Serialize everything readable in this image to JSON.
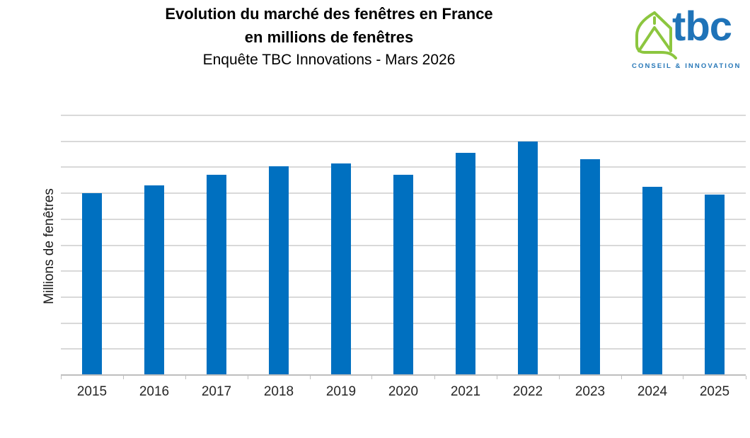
{
  "title": {
    "line1": "Evolution du marché des fenêtres en France",
    "line2": "en millions de fenêtres",
    "subtitle": "Enquête TBC Innovations - Mars 2026"
  },
  "logo": {
    "text": "tbc",
    "tagline": "CONSEIL & INNOVATION",
    "green": "#8CC63F",
    "blue": "#1F73B8",
    "tagline_blue": "#2878B8"
  },
  "chart_data": {
    "type": "bar",
    "title": "Evolution du marché des fenêtres en France en millions de fenêtres",
    "subtitle": "Enquête TBC Innovations - Mars 2026",
    "categories": [
      "2015",
      "2016",
      "2017",
      "2018",
      "2019",
      "2020",
      "2021",
      "2022",
      "2023",
      "2024",
      "2025"
    ],
    "values": [
      7.0,
      7.3,
      7.7,
      8.05,
      8.15,
      7.7,
      8.55,
      9.0,
      8.3,
      7.25,
      6.95
    ],
    "xlabel": "",
    "ylabel": "Millions de fenêtres",
    "ylim": [
      0,
      10
    ],
    "gridline_step": 1,
    "grid": "horizontal",
    "y_tick_labels_visible": false,
    "legend_position": "none",
    "bar_color": "#0070C0",
    "gridline_color": "#D9D9D9",
    "axis_line_color": "#BEBEBE",
    "tick_color": "#BFBFBF"
  }
}
